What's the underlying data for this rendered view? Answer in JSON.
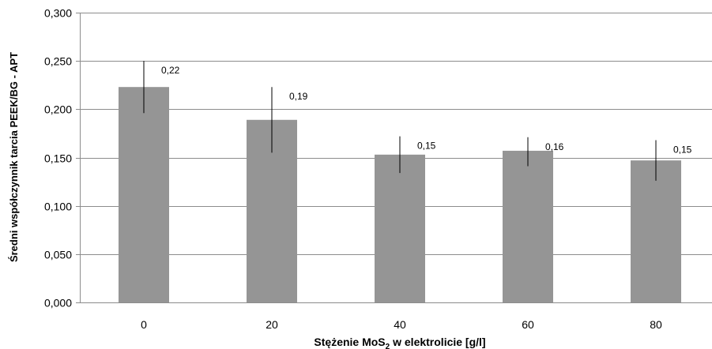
{
  "chart_data": {
    "type": "bar",
    "title": "",
    "ylabel": "Średni współczynnik tarcia  PEEK/BG - APT",
    "xlabel": {
      "prefix": "Stężenie MoS",
      "subscript": "2",
      "suffix": " w elektrolicie [g/l]"
    },
    "categories": [
      "0",
      "20",
      "40",
      "60",
      "80"
    ],
    "values": [
      0.223,
      0.189,
      0.153,
      0.157,
      0.147
    ],
    "error_bars": [
      {
        "low": 0.196,
        "high": 0.25
      },
      {
        "low": 0.155,
        "high": 0.223
      },
      {
        "low": 0.134,
        "high": 0.172
      },
      {
        "low": 0.141,
        "high": 0.171
      },
      {
        "low": 0.126,
        "high": 0.168
      }
    ],
    "data_labels": [
      "0,22",
      "0,19",
      "0,15",
      "0,16",
      "0,15"
    ],
    "ylim": [
      0,
      0.3
    ],
    "yticks": [
      0,
      0.05,
      0.1,
      0.15,
      0.2,
      0.25,
      0.3
    ],
    "ytick_labels": [
      "0,000",
      "0,050",
      "0,100",
      "0,150",
      "0,200",
      "0,250",
      "0,300"
    ],
    "bar_color": "#959595",
    "grid": true,
    "legend": "none"
  }
}
